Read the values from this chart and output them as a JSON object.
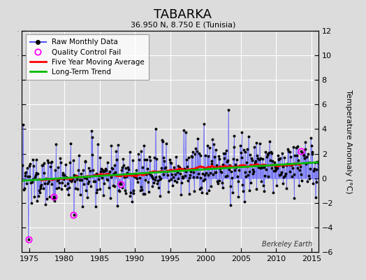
{
  "title": "TABARKA",
  "subtitle": "36.950 N, 8.750 E (Tunisia)",
  "ylabel": "Temperature Anomaly (°C)",
  "watermark": "Berkeley Earth",
  "xlim": [
    1974,
    2016
  ],
  "ylim": [
    -6,
    12
  ],
  "yticks_left": [
    -4,
    -2,
    0,
    2,
    4,
    6,
    8,
    10,
    12
  ],
  "yticks_right": [
    -6,
    -4,
    -2,
    0,
    2,
    4,
    6,
    8,
    10,
    12
  ],
  "xticks": [
    1975,
    1980,
    1985,
    1990,
    1995,
    2000,
    2005,
    2010,
    2015
  ],
  "bg_color": "#dcdcdc",
  "grid_color": "#ffffff",
  "raw_line_color": "#5555ff",
  "raw_dot_color": "#000000",
  "moving_avg_color": "#ff0000",
  "trend_color": "#00bb00",
  "qc_fail_color": "#ff00ff",
  "seed": 137
}
